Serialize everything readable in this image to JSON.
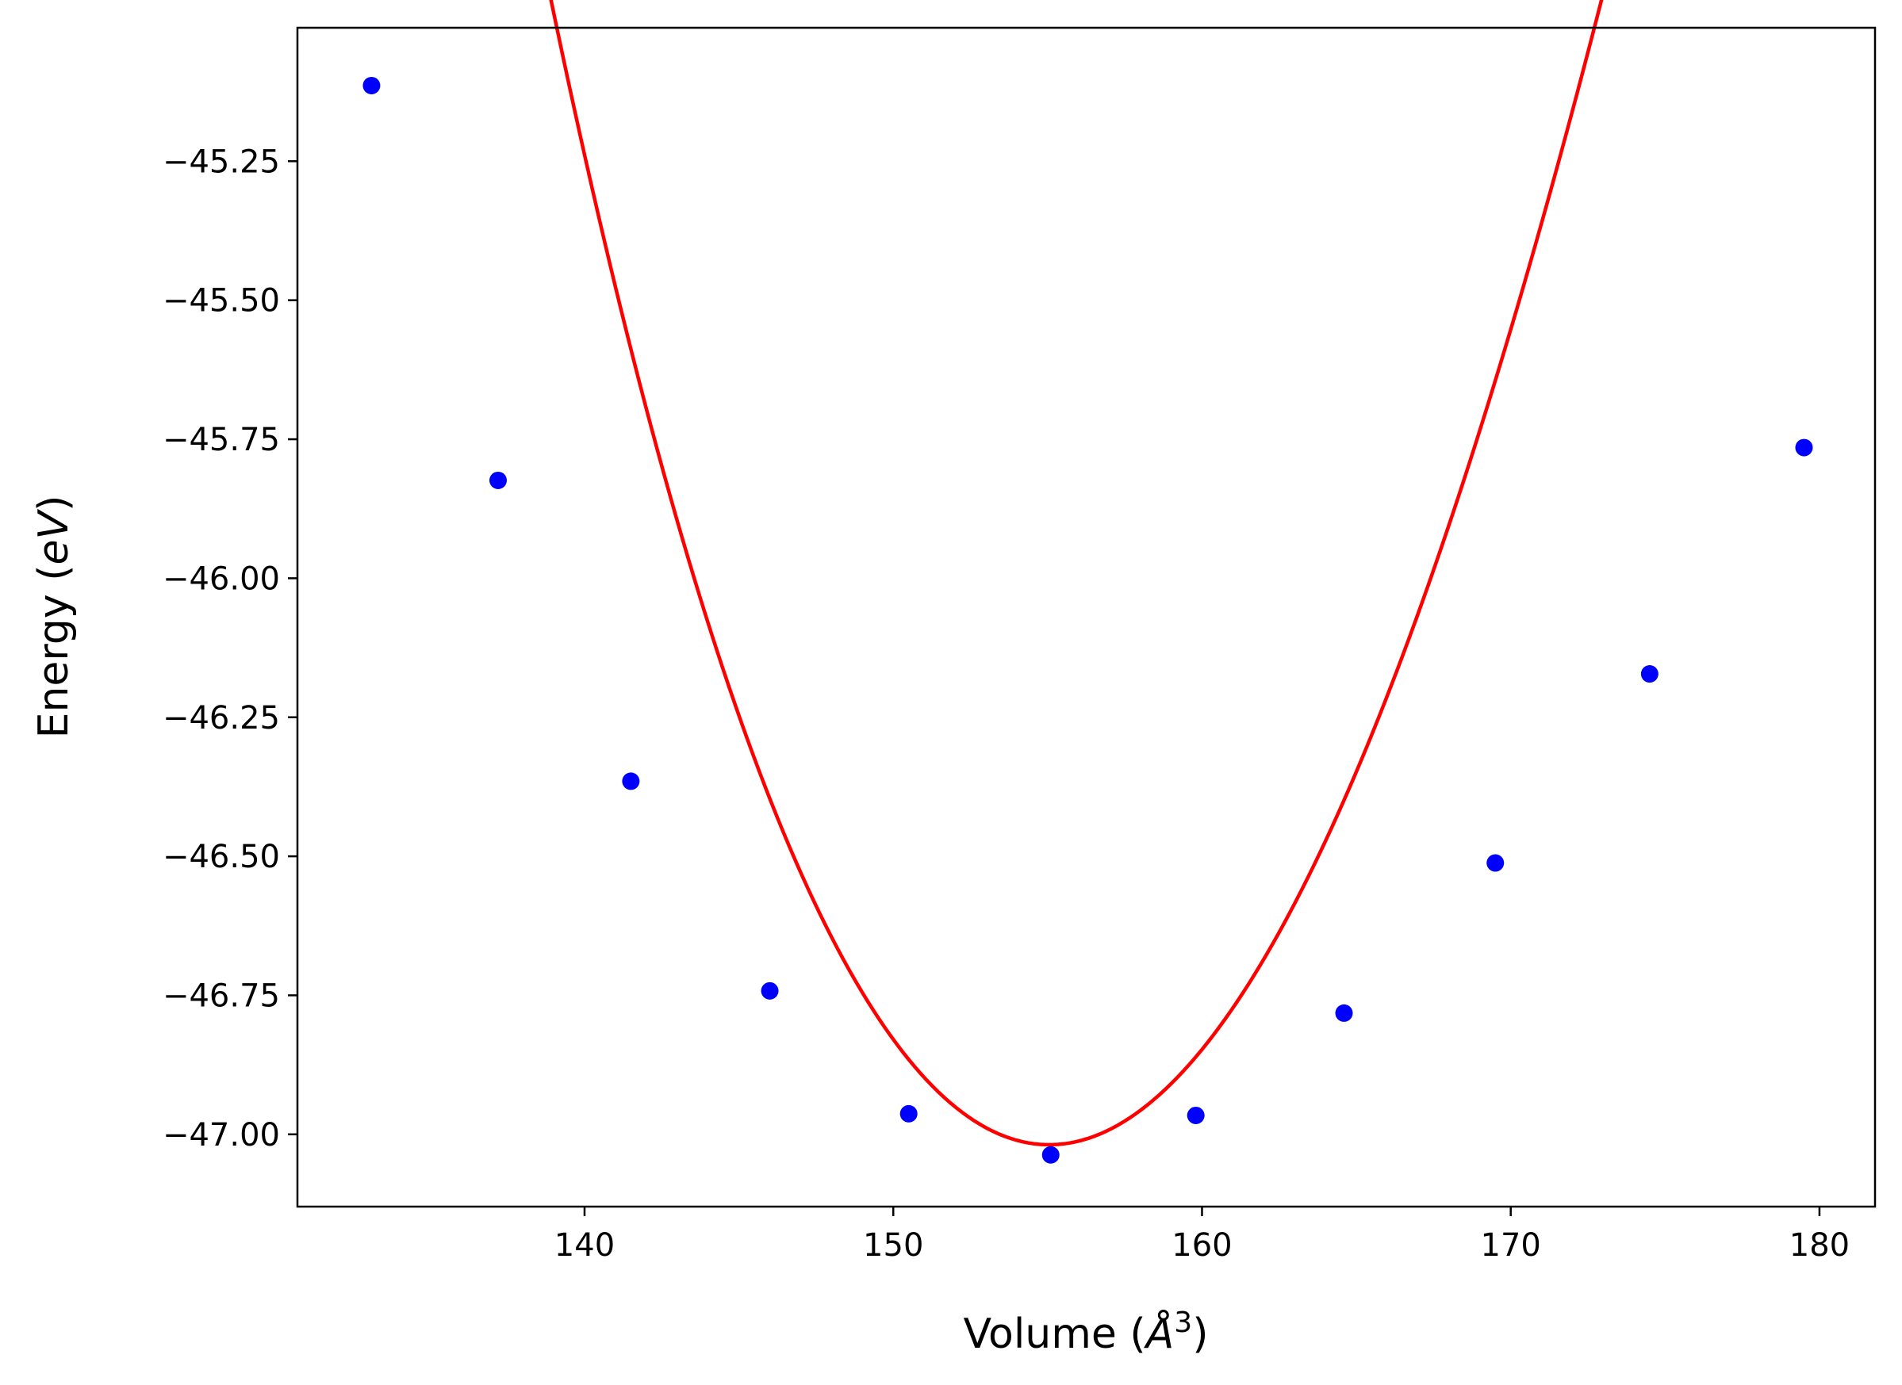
{
  "chart_data": {
    "type": "scatter",
    "title": "",
    "xlabel": "Volume (Å³)",
    "xlabel_parts": {
      "prefix": "Volume (",
      "symbol": "Å",
      "exponent": "3",
      "suffix": ")"
    },
    "ylabel": "Energy (eV)",
    "ylabel_parts": {
      "prefix": "Energy (",
      "unit": "eV",
      "suffix": ")"
    },
    "xlim": [
      130.7,
      181.8
    ],
    "ylim": [
      -47.13,
      -45.01
    ],
    "xticks": [
      140,
      150,
      160,
      170,
      180
    ],
    "yticks": [
      -45.25,
      -45.5,
      -45.75,
      -46.0,
      -46.25,
      -46.5,
      -46.75,
      -47.0
    ],
    "ytick_labels": [
      "−45.25",
      "−45.50",
      "−45.75",
      "−46.00",
      "−46.25",
      "−46.50",
      "−46.75",
      "−47.00"
    ],
    "grid": false,
    "legend": "none",
    "series": [
      {
        "type": "scatter",
        "color": "#0000ff",
        "x": [
          133.1,
          137.2,
          141.5,
          146.0,
          150.5,
          155.1,
          159.8,
          164.6,
          169.5,
          174.5,
          179.5
        ],
        "y": [
          -45.114,
          -45.824,
          -46.365,
          -46.742,
          -46.963,
          -47.037,
          -46.966,
          -46.782,
          -46.512,
          -46.172,
          -45.765
        ]
      },
      {
        "type": "line",
        "color": "#ff0000",
        "fit": "cubic",
        "coefficients": [
          -47.0187,
          0.0,
          0.007207,
          -4.33e-05
        ],
        "x0": 155.05,
        "x_range": [
          133.1,
          179.5
        ]
      }
    ]
  }
}
